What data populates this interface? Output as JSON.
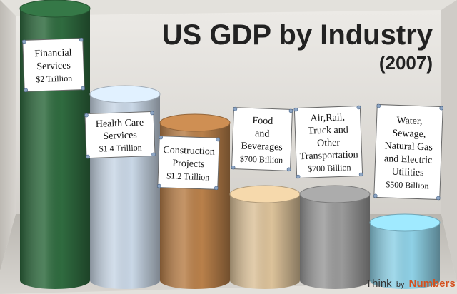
{
  "chart_data": {
    "type": "bar",
    "title": "US GDP by Industry",
    "subtitle": "(2007)",
    "categories": [
      "Financial Services",
      "Health Care Services",
      "Construction Projects",
      "Food and Beverages",
      "Air, Rail, Truck and Other Transportation",
      "Water, Sewage, Natural Gas and Electric Utilities"
    ],
    "values_trillion_usd": [
      2.0,
      1.4,
      1.2,
      0.7,
      0.7,
      0.5
    ],
    "labels": [
      [
        "Financial",
        "Services",
        "$2 Trillion"
      ],
      [
        "Health Care",
        "Services",
        "$1.4 Trillion"
      ],
      [
        "Construction",
        "Projects",
        "$1.2 Trillion"
      ],
      [
        "Food",
        "and",
        "Beverages",
        "$700 Billion"
      ],
      [
        "Air,Rail,",
        "Truck and",
        "Other",
        "Transportation",
        "$700 Billion"
      ],
      [
        "Water,",
        "Sewage,",
        "Natural Gas",
        "and Electric",
        "Utilities",
        "$500 Billion"
      ]
    ],
    "colors": [
      "#2f6b3f",
      "#c9d7e6",
      "#b9804a",
      "#dcc29a",
      "#9a9a9a",
      "#8fd1e6"
    ],
    "grid": false,
    "legend": "none"
  },
  "brand": {
    "think": "Think",
    "by": "by",
    "numbers": "Numbers",
    "registered": "®"
  }
}
